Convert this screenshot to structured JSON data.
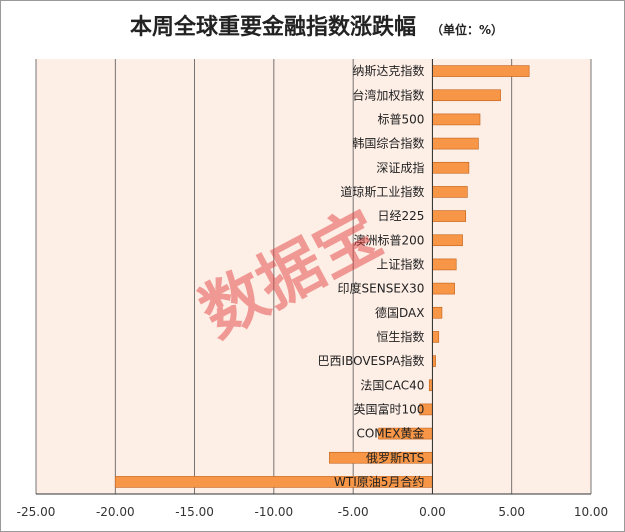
{
  "chart_data": {
    "type": "bar",
    "orientation": "horizontal",
    "title": "本周全球重要金融指数涨跌幅",
    "subtitle": "（单位：%）",
    "categories": [
      "纳斯达克指数",
      "台湾加权指数",
      "标普500",
      "韩国综合指数",
      "深证成指",
      "道琼斯工业指数",
      "日经225",
      "澳洲标普200",
      "上证指数",
      "印度SENSEX30",
      "德国DAX",
      "恒生指数",
      "巴西IBOVESPA指数",
      "法国CAC40",
      "英国富时100",
      "COMEX黄金",
      "俄罗斯RTS",
      "WTI原油5月合约"
    ],
    "values": [
      6.1,
      4.3,
      3.0,
      2.9,
      2.3,
      2.2,
      2.1,
      1.9,
      1.5,
      1.4,
      0.6,
      0.4,
      0.2,
      -0.2,
      -0.8,
      -3.4,
      -6.5,
      -20.0
    ],
    "xlim": [
      -25,
      10
    ],
    "xticks": [
      "-25.00",
      "-20.00",
      "-15.00",
      "-10.00",
      "-5.00",
      "0.00",
      "5.00",
      "10.00"
    ],
    "xtick_values": [
      -25,
      -20,
      -15,
      -10,
      -5,
      0,
      5,
      10
    ],
    "grid": "vertical",
    "watermark": "数据宝",
    "colors": {
      "bar": "#f79646",
      "bar_edge": "#c0611a",
      "plot_bg": "#fdeee6",
      "grid": "#555555"
    }
  }
}
